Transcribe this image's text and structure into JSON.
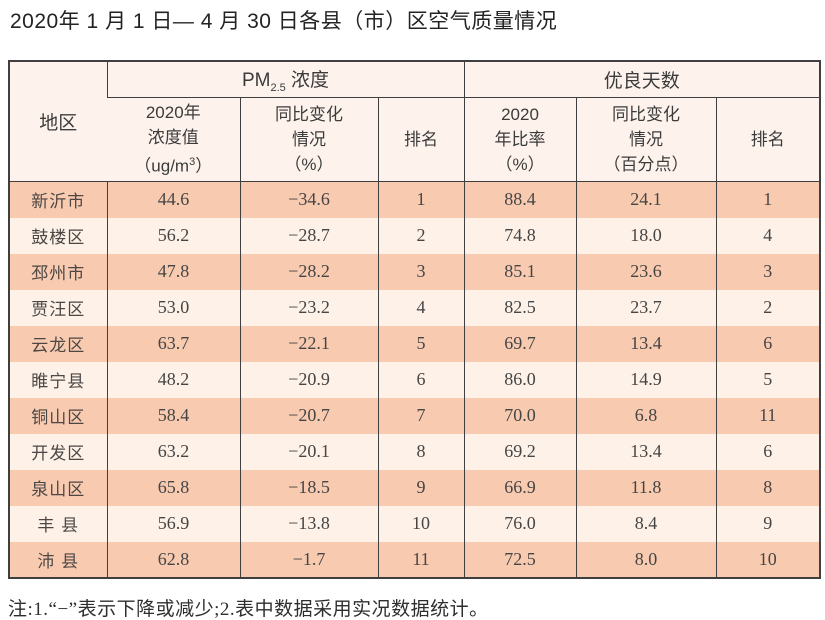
{
  "page": {
    "title": "2020年 1 月 1 日— 4 月 30 日各县（市）区空气质量情况",
    "footnote": "注:1.“−”表示下降或减少;2.表中数据采用实况数据统计。"
  },
  "table": {
    "header": {
      "region": "地区",
      "pm_group": {
        "main": "PM",
        "sub": "2.5",
        "rest": " 浓度"
      },
      "days_group": "优良天数",
      "pm_value": {
        "line1": "2020年",
        "line2": "浓度值",
        "line3_pre": "（ug/m",
        "line3_sup": "3",
        "line3_post": "）"
      },
      "pm_change": {
        "line1": "同比变化",
        "line2": "情况",
        "line3": "（%）"
      },
      "pm_rank": "排名",
      "days_rate": {
        "line1": "2020",
        "line2": "年比率",
        "line3": "（%）"
      },
      "days_change": {
        "line1": "同比变化",
        "line2": "情况",
        "line3": "（百分点）"
      },
      "days_rank": "排名"
    }
  },
  "chart_data": {
    "type": "table",
    "title": "2020年1月1日—4月30日各县（市）区空气质量情况",
    "columns": [
      "地区",
      "PM2.5浓度 2020年浓度值（ug/m³）",
      "PM2.5浓度 同比变化情况（%）",
      "PM2.5浓度 排名",
      "优良天数 2020年比率（%）",
      "优良天数 同比变化情况（百分点）",
      "优良天数 排名"
    ],
    "rows": [
      [
        "新沂市",
        "44.6",
        "−34.6",
        "1",
        "88.4",
        "24.1",
        "1"
      ],
      [
        "鼓楼区",
        "56.2",
        "−28.7",
        "2",
        "74.8",
        "18.0",
        "4"
      ],
      [
        "邳州市",
        "47.8",
        "−28.2",
        "3",
        "85.1",
        "23.6",
        "3"
      ],
      [
        "贾汪区",
        "53.0",
        "−23.2",
        "4",
        "82.5",
        "23.7",
        "2"
      ],
      [
        "云龙区",
        "63.7",
        "−22.1",
        "5",
        "69.7",
        "13.4",
        "6"
      ],
      [
        "睢宁县",
        "48.2",
        "−20.9",
        "6",
        "86.0",
        "14.9",
        "5"
      ],
      [
        "铜山区",
        "58.4",
        "−20.7",
        "7",
        "70.0",
        "6.8",
        "11"
      ],
      [
        "开发区",
        "63.2",
        "−20.1",
        "8",
        "69.2",
        "13.4",
        "6"
      ],
      [
        "泉山区",
        "65.8",
        "−18.5",
        "9",
        "66.9",
        "11.8",
        "8"
      ],
      [
        "丰 县",
        "56.9",
        "−13.8",
        "10",
        "76.0",
        "8.4",
        "9"
      ],
      [
        "沛 县",
        "62.8",
        "−1.7",
        "11",
        "72.5",
        "8.0",
        "10"
      ]
    ],
    "footnote": "注:1.“−”表示下降或减少;2.表中数据采用实况数据统计。"
  },
  "colors": {
    "border": "#3f3f3f",
    "header_bg": "#fdf3ec",
    "row_odd_bg": "#f8cab0",
    "row_even_bg": "#fdf1e8"
  }
}
